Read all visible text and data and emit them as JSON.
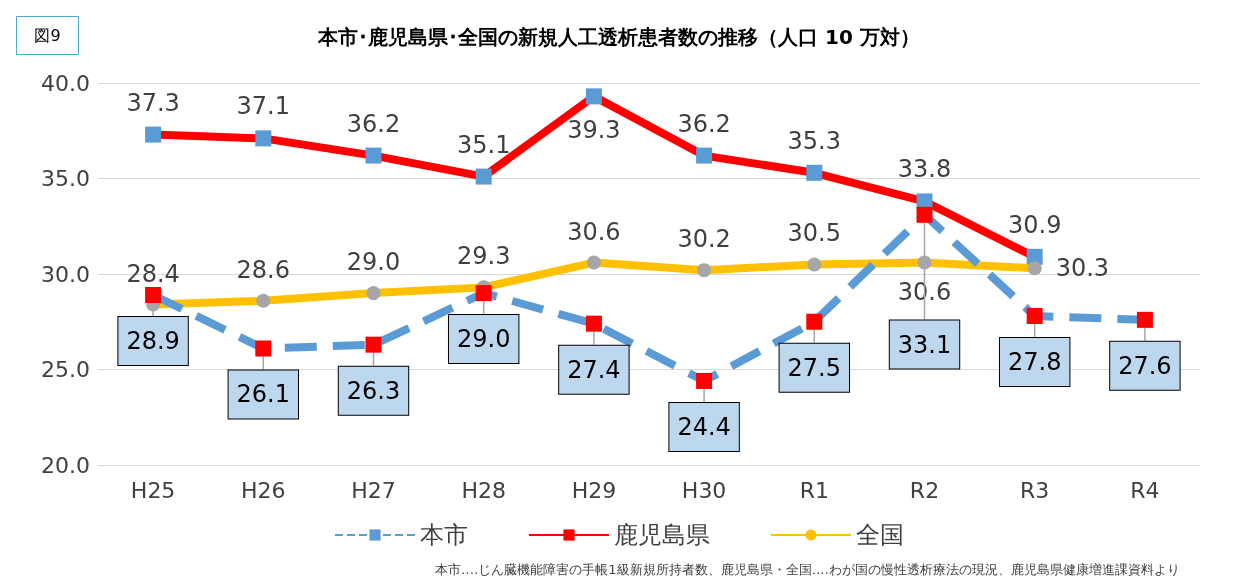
{
  "chart_data": {
    "type": "line",
    "title": "本市･鹿児島県･全国の新規人工透析患者数の推移（人口 10 万対）",
    "annotations": [
      "図9",
      "本市‥‥じん臓機能障害の手帳1級新規所持者数、鹿児島県・全国‥‥わが国の慢性透析療法の現況、鹿児島県健康増進課資料より"
    ],
    "categories": [
      "H25",
      "H26",
      "H27",
      "H28",
      "H29",
      "H30",
      "R1",
      "R2",
      "R3",
      "R4"
    ],
    "series": [
      {
        "name": "本市",
        "color": "#5b9bd5",
        "colors": [
          "#ff0000",
          "#ff0000",
          "#ff0000",
          "#ff0000",
          "#ff0000",
          "#ff0000",
          "#ff0000",
          "#ff0000",
          "#ff0000",
          "#ff0000"
        ],
        "marker": "square",
        "line_style": "dashed",
        "values": [
          28.9,
          26.1,
          26.3,
          29.0,
          27.4,
          24.4,
          27.5,
          33.1,
          27.8,
          27.6
        ],
        "value_labels": [
          "28.9",
          "26.1",
          "26.3",
          "29.0",
          "27.4",
          "24.4",
          "27.5",
          "33.1",
          "27.8",
          "27.6"
        ]
      },
      {
        "name": "鹿児島県",
        "color": "#ff0000",
        "colors": [
          "#5b9bd5",
          "#5b9bd5",
          "#5b9bd5",
          "#5b9bd5",
          "#5b9bd5",
          "#5b9bd5",
          "#5b9bd5",
          "#5b9bd5",
          "#5b9bd5",
          null
        ],
        "marker": "square",
        "line_style": "solid",
        "values": [
          37.3,
          37.1,
          36.2,
          35.1,
          39.3,
          36.2,
          35.3,
          33.8,
          30.9,
          null
        ],
        "value_labels": [
          "37.3",
          "37.1",
          "36.2",
          "35.1",
          "39.3",
          "36.2",
          "35.3",
          "33.8",
          "30.9",
          null
        ]
      },
      {
        "name": "全国",
        "color": "#ffc000",
        "colors": [
          "#a6a6a6",
          "#a6a6a6",
          "#a6a6a6",
          "#a6a6a6",
          "#a6a6a6",
          "#a6a6a6",
          "#a6a6a6",
          "#a6a6a6",
          "#a6a6a6",
          null
        ],
        "marker": "circle",
        "line_style": "solid",
        "values": [
          28.4,
          28.6,
          29.0,
          29.3,
          30.6,
          30.2,
          30.5,
          30.6,
          30.3,
          null
        ],
        "value_labels": [
          "28.4",
          "28.6",
          "29.0",
          "29.3",
          "30.6",
          "30.2",
          "30.5",
          "30.6",
          "30.3",
          null
        ]
      }
    ],
    "ylim": [
      20,
      40
    ],
    "yticks": [
      {
        "value": 20,
        "label": "20.0"
      },
      {
        "value": 25,
        "label": "25.0"
      },
      {
        "value": 30,
        "label": "30.0"
      },
      {
        "value": 35,
        "label": "35.0"
      },
      {
        "value": 40,
        "label": "40.0"
      }
    ],
    "grid": "y",
    "legend": "bottom"
  }
}
